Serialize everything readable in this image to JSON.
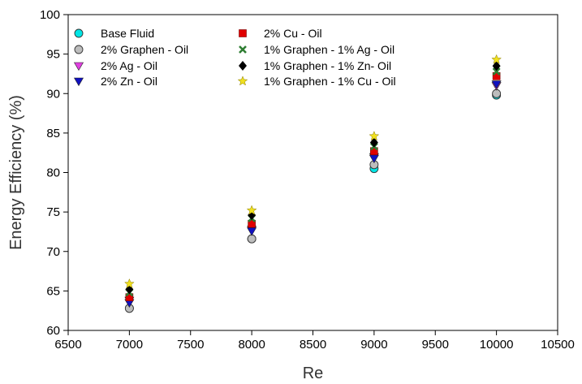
{
  "chart_data": {
    "type": "scatter",
    "title": "",
    "xlabel": "Re",
    "ylabel": "Energy Efficiency (%)",
    "xlim": [
      6500,
      10500
    ],
    "ylim": [
      60,
      100
    ],
    "x_ticks": [
      6500,
      7000,
      7500,
      8000,
      8500,
      9000,
      9500,
      10000,
      10500
    ],
    "y_ticks": [
      60,
      65,
      70,
      75,
      80,
      85,
      90,
      95,
      100
    ],
    "grid": false,
    "legend_position": "top-left",
    "x": [
      7000,
      8000,
      9000,
      10000
    ],
    "series": [
      {
        "name": "Base Fluid",
        "marker": "circle",
        "color": "#00e5e5",
        "values": [
          62.8,
          71.6,
          80.5,
          89.8
        ]
      },
      {
        "name": "2% Graphen - Oil",
        "marker": "circle",
        "color": "#bdbdbd",
        "values": [
          62.8,
          71.6,
          81.0,
          90.0
        ]
      },
      {
        "name": "2% Ag - Oil",
        "marker": "triangle-down",
        "color": "#e040e0",
        "values": [
          63.8,
          72.8,
          82.0,
          91.0
        ]
      },
      {
        "name": "2% Zn - Oil",
        "marker": "triangle-down",
        "color": "#1010c0",
        "values": [
          63.5,
          72.6,
          81.8,
          91.2
        ]
      },
      {
        "name": "2% Cu - Oil",
        "marker": "square",
        "color": "#e00000",
        "values": [
          64.2,
          73.5,
          82.7,
          92.2
        ]
      },
      {
        "name": "1% Graphen - 1% Ag - Oil",
        "marker": "x",
        "color": "#2e7d32",
        "values": [
          64.8,
          74.2,
          83.3,
          92.8
        ]
      },
      {
        "name": "1% Graphen - 1% Zn- Oil",
        "marker": "diamond",
        "color": "#000000",
        "values": [
          65.2,
          74.6,
          83.8,
          93.5
        ]
      },
      {
        "name": "1% Graphen - 1% Cu - Oil",
        "marker": "star",
        "color": "#f0e020",
        "values": [
          65.9,
          75.2,
          84.6,
          94.3
        ]
      }
    ]
  }
}
